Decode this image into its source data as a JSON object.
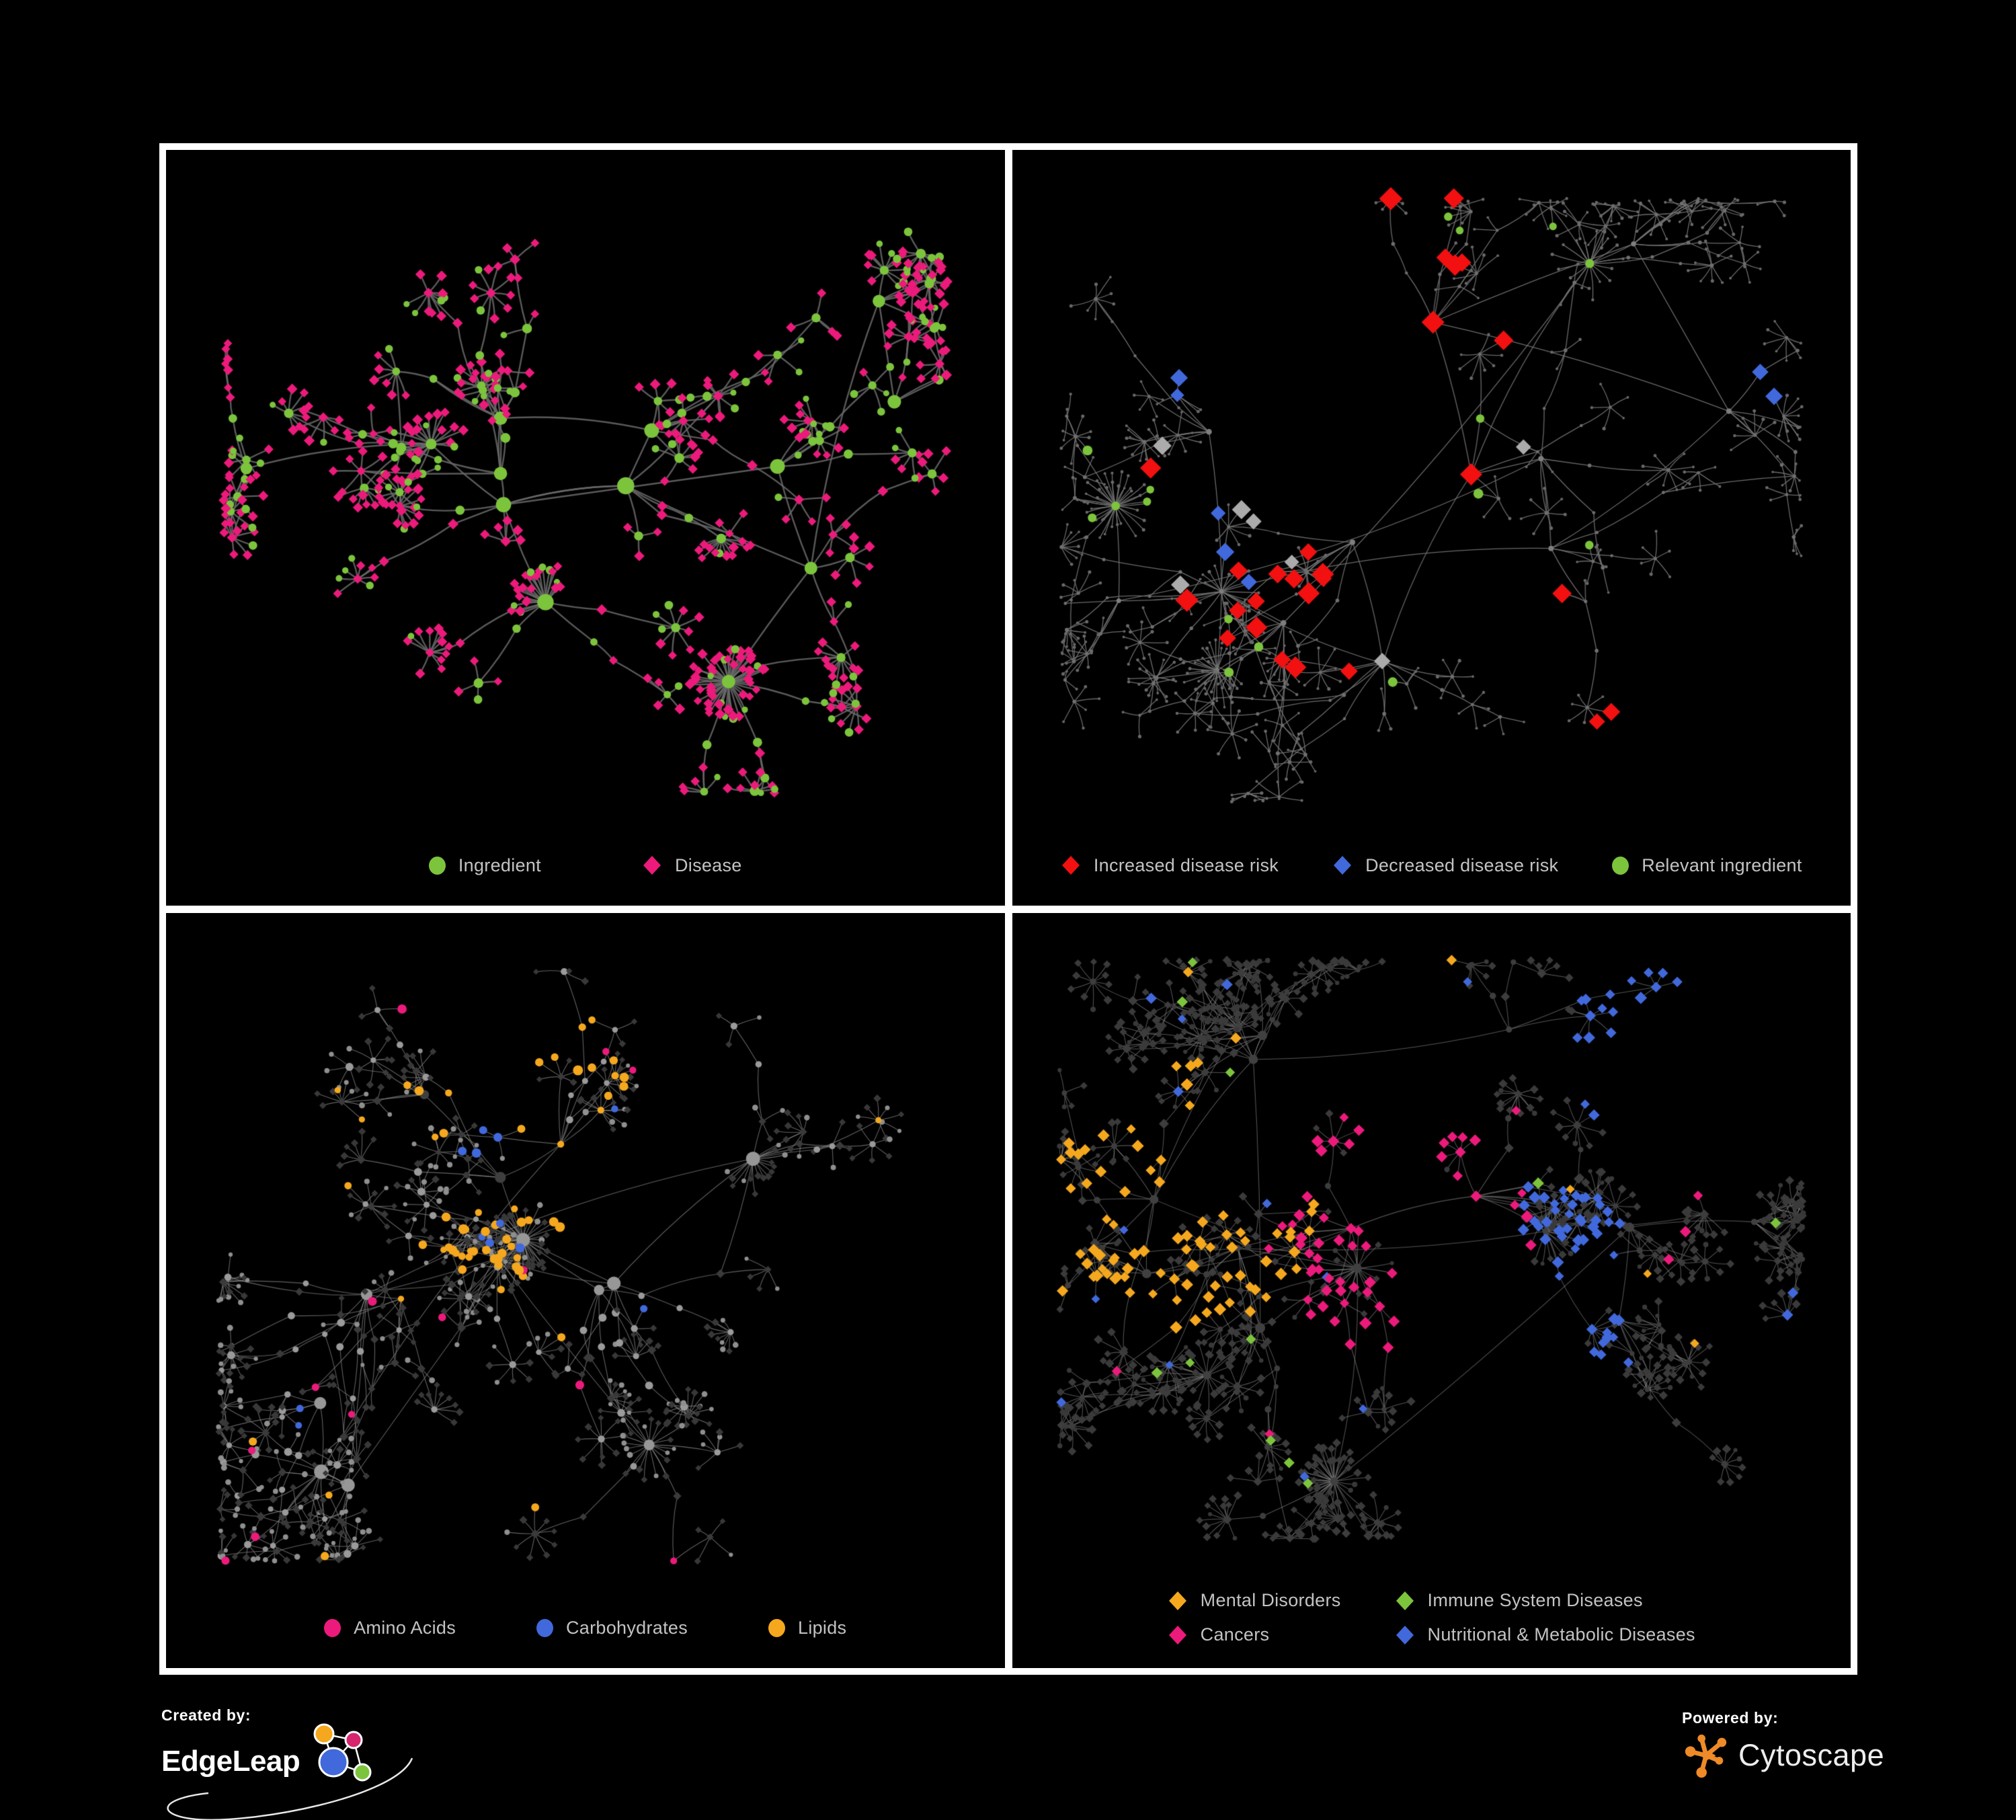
{
  "page": {
    "background": "#000000",
    "frame_color": "#ffffff",
    "legend_text_color": "#c3c3c3"
  },
  "colors": {
    "green": "#7cc43c",
    "magenta": "#ec1a7b",
    "red": "#f21010",
    "blue": "#4169dc",
    "orange": "#f5a81e",
    "silver": "#ababab"
  },
  "footer": {
    "created_by": "Created by:",
    "brand": "EdgeLeap",
    "powered_by": "Powered by:",
    "engine": "Cytoscape",
    "cytoscape_color": "#ee8a28",
    "edgeleap_node_colors": [
      "#f5a81e",
      "#d6246e",
      "#4169dc",
      "#7cc43c"
    ]
  },
  "panels": [
    {
      "name": "ingredient-disease-network",
      "legend": {
        "layout": "row",
        "gap": 150,
        "items": [
          {
            "label": "Ingredient",
            "shape": "circle",
            "color": "#7cc43c"
          },
          {
            "label": "Disease",
            "shape": "diamond",
            "color": "#ec1a7b"
          }
        ]
      },
      "network": {
        "seed": 1234,
        "gen": {
          "hubs": 13,
          "brMin": 3,
          "brMax": 7,
          "fanMin": 3,
          "fanMax": 9,
          "bursts": 4,
          "burstMin": 14,
          "burstMax": 28,
          "cross": 6,
          "webs": 40,
          "margin": 85
        },
        "edge": {
          "color": "#6a6a6a",
          "width": 2.4,
          "alpha": 0.85
        },
        "base": {
          "hub": [
            [
              1.0,
              "circle",
              "#7cc43c",
              8,
              13
            ]
          ],
          "joint": [
            [
              0.58,
              "circle",
              "#7cc43c",
              5.5,
              7.5
            ],
            [
              0.42,
              "diamond",
              "#ec1a7b",
              5,
              6.5
            ]
          ],
          "leaf": [
            [
              0.76,
              "diamond",
              "#ec1a7b",
              5,
              6.5
            ],
            [
              0.24,
              "circle",
              "#7cc43c",
              4.5,
              6.5
            ]
          ]
        },
        "overlays": []
      }
    },
    {
      "name": "disease-risk-network",
      "legend": {
        "layout": "row",
        "gap": 80,
        "items": [
          {
            "label": "Increased disease risk",
            "shape": "diamond",
            "color": "#f21010"
          },
          {
            "label": "Decreased disease risk",
            "shape": "diamond",
            "color": "#4169dc"
          },
          {
            "label": "Relevant ingredient",
            "shape": "circle",
            "color": "#7cc43c"
          }
        ]
      },
      "network": {
        "seed": 987,
        "gen": {
          "hubs": 16,
          "brMin": 3,
          "brMax": 7,
          "fanMin": 3,
          "fanMax": 8,
          "bursts": 5,
          "burstMin": 12,
          "burstMax": 24,
          "cross": 6,
          "webs": 28,
          "margin": 72
        },
        "edge": {
          "color": "#757575",
          "width": 1.3,
          "alpha": 0.9
        },
        "base": {
          "hub": [
            [
              1.0,
              "circle",
              "#7e7e7e",
              3,
              4.5
            ]
          ],
          "joint": [
            [
              1.0,
              "circle",
              "#6f6f6f",
              2.2,
              3
            ]
          ],
          "leaf": [
            [
              1.0,
              "circle",
              "#686868",
              1.8,
              2.6
            ]
          ]
        },
        "overlays": [
          {
            "count": 24,
            "shape": "diamond",
            "color": "#f21010",
            "size": [
              10,
              14
            ],
            "cluster": [
              0.42,
              0.4,
              0.36
            ]
          },
          {
            "count": 3,
            "shape": "diamond",
            "color": "#f21010",
            "size": [
              9,
              12
            ],
            "cluster": [
              0.7,
              0.74,
              0.12
            ]
          },
          {
            "count": 7,
            "shape": "diamond",
            "color": "#ababab",
            "size": [
              8,
              12
            ],
            "cluster": [
              0.4,
              0.44,
              0.3
            ]
          },
          {
            "count": 5,
            "shape": "diamond",
            "color": "#4169dc",
            "size": [
              8,
              12
            ],
            "cluster": [
              0.3,
              0.42,
              0.22
            ]
          },
          {
            "count": 2,
            "shape": "diamond",
            "color": "#4169dc",
            "size": [
              9,
              11
            ],
            "cluster": [
              0.86,
              0.32,
              0.07
            ]
          },
          {
            "count": 16,
            "shape": "circle",
            "color": "#7cc43c",
            "size": [
              5.5,
              7.5
            ],
            "cluster": [
              0.42,
              0.4,
              0.42
            ]
          }
        ]
      }
    },
    {
      "name": "ingredient-category-network",
      "legend": {
        "layout": "row",
        "gap": 120,
        "items": [
          {
            "label": "Amino Acids",
            "shape": "circle",
            "color": "#ec1a7b"
          },
          {
            "label": "Carbohydrates",
            "shape": "circle",
            "color": "#4169dc"
          },
          {
            "label": "Lipids",
            "shape": "circle",
            "color": "#f5a81e"
          }
        ]
      },
      "network": {
        "seed": 555,
        "gen": {
          "hubs": 14,
          "brMin": 3,
          "brMax": 7,
          "fanMin": 3,
          "fanMax": 9,
          "bursts": 5,
          "burstMin": 14,
          "burstMax": 30,
          "cross": 7,
          "webs": 35,
          "margin": 78
        },
        "edge": {
          "color": "#8a8a8a",
          "width": 1.1,
          "alpha": 0.7
        },
        "base": {
          "hub": [
            [
              0.88,
              "circle",
              "#979797",
              6.5,
              11
            ],
            [
              0.12,
              "circle",
              "#3f3f3f",
              6,
              9
            ]
          ],
          "joint": [
            [
              0.5,
              "circle",
              "#9a9a9a",
              4,
              6
            ],
            [
              0.5,
              "diamond",
              "#3a3a3a",
              4,
              5.5
            ]
          ],
          "leaf": [
            [
              0.6,
              "diamond",
              "#383838",
              3.5,
              4.8
            ],
            [
              0.4,
              "circle",
              "#8f8f8f",
              3,
              4.5
            ]
          ]
        },
        "overlays": [
          {
            "count": 46,
            "shape": "circle",
            "color": "#f5a81e",
            "size": [
              5,
              7.5
            ],
            "cluster": [
              0.47,
              0.3,
              0.26
            ]
          },
          {
            "count": 16,
            "shape": "circle",
            "color": "#f5a81e",
            "size": [
              4.5,
              7
            ],
            "cluster": null
          },
          {
            "count": 13,
            "shape": "circle",
            "color": "#ec1a7b",
            "size": [
              5,
              7
            ],
            "cluster": null
          },
          {
            "count": 9,
            "shape": "circle",
            "color": "#4169dc",
            "size": [
              5,
              7
            ],
            "cluster": [
              0.5,
              0.3,
              0.22
            ]
          },
          {
            "count": 3,
            "shape": "circle",
            "color": "#4169dc",
            "size": [
              4.5,
              6
            ],
            "cluster": null
          }
        ]
      }
    },
    {
      "name": "disease-category-network",
      "legend": {
        "layout": "grid2",
        "gap": 80,
        "items": [
          {
            "label": "Mental Disorders",
            "shape": "diamond",
            "color": "#f5a81e"
          },
          {
            "label": "Immune System Diseases",
            "shape": "diamond",
            "color": "#7cc43c"
          },
          {
            "label": "Cancers",
            "shape": "diamond",
            "color": "#ec1a7b"
          },
          {
            "label": "Nutritional & Metabolic Diseases",
            "shape": "diamond",
            "color": "#4169dc"
          }
        ]
      },
      "network": {
        "seed": 2024,
        "gen": {
          "hubs": 17,
          "brMin": 4,
          "brMax": 8,
          "fanMin": 4,
          "fanMax": 10,
          "bursts": 6,
          "burstMin": 14,
          "burstMax": 30,
          "cross": 9,
          "webs": 45,
          "margin": 70
        },
        "edge": {
          "color": "#8c8c8c",
          "width": 1.05,
          "alpha": 0.6
        },
        "base": {
          "hub": [
            [
              1.0,
              "circle",
              "#404040",
              4.5,
              7.5
            ]
          ],
          "joint": [
            [
              0.45,
              "circle",
              "#3d3d3d",
              3.5,
              5
            ],
            [
              0.55,
              "diamond",
              "#3d3d3d",
              4.5,
              6
            ]
          ],
          "leaf": [
            [
              0.82,
              "diamond",
              "#3a3a3a",
              4,
              5.5
            ],
            [
              0.18,
              "circle",
              "#383838",
              3,
              4.2
            ]
          ]
        },
        "overlays": [
          {
            "count": 80,
            "shape": "diamond",
            "color": "#f5a81e",
            "size": [
              5.5,
              7.5
            ],
            "cluster": [
              0.21,
              0.42,
              0.2
            ]
          },
          {
            "count": 8,
            "shape": "diamond",
            "color": "#f5a81e",
            "size": [
              5,
              7
            ],
            "cluster": null
          },
          {
            "count": 55,
            "shape": "diamond",
            "color": "#ec1a7b",
            "size": [
              5.5,
              7.5
            ],
            "cluster": [
              0.46,
              0.48,
              0.2
            ]
          },
          {
            "count": 7,
            "shape": "diamond",
            "color": "#ec1a7b",
            "size": [
              5,
              7
            ],
            "cluster": [
              0.91,
              0.22,
              0.09
            ]
          },
          {
            "count": 6,
            "shape": "diamond",
            "color": "#ec1a7b",
            "size": [
              5,
              7
            ],
            "cluster": null
          },
          {
            "count": 45,
            "shape": "diamond",
            "color": "#4169dc",
            "size": [
              5.5,
              7.5
            ],
            "cluster": [
              0.62,
              0.54,
              0.16
            ]
          },
          {
            "count": 22,
            "shape": "diamond",
            "color": "#4169dc",
            "size": [
              5.5,
              7.5
            ],
            "cluster": [
              0.79,
              0.2,
              0.16
            ]
          },
          {
            "count": 18,
            "shape": "diamond",
            "color": "#4169dc",
            "size": [
              5,
              7
            ],
            "cluster": null
          },
          {
            "count": 11,
            "shape": "diamond",
            "color": "#7cc43c",
            "size": [
              5.5,
              7
            ],
            "cluster": null
          }
        ]
      }
    }
  ]
}
